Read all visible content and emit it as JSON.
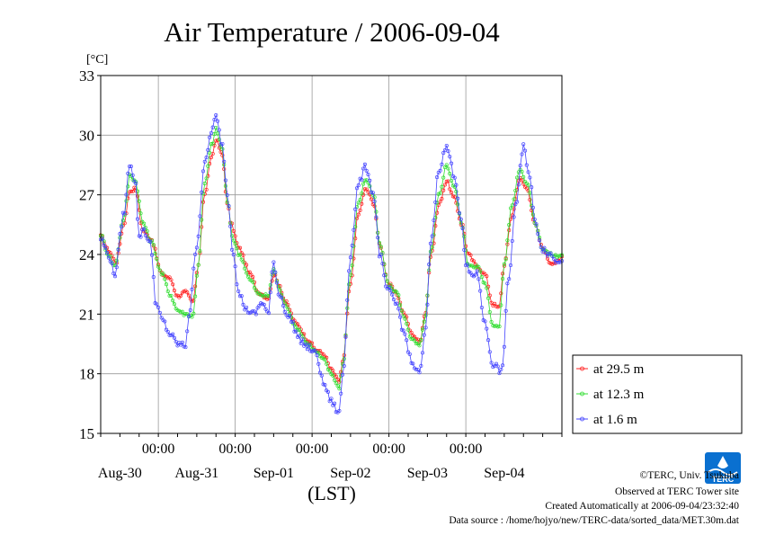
{
  "chart_data": {
    "type": "line",
    "title": "Air Temperature / 2006-09-04",
    "ylabel": "[°C]",
    "xlabel": "(LST)",
    "ylim": [
      15,
      33
    ],
    "yticks": [
      15,
      18,
      21,
      24,
      27,
      30,
      33
    ],
    "x_unit": "days since Aug-29 06:00",
    "xlim": [
      0,
      6
    ],
    "time_ticks": [
      {
        "x": 0.75,
        "label": "00:00"
      },
      {
        "x": 1.75,
        "label": "00:00"
      },
      {
        "x": 2.75,
        "label": "00:00"
      },
      {
        "x": 3.75,
        "label": "00:00"
      },
      {
        "x": 4.75,
        "label": "00:00"
      }
    ],
    "date_ticks": [
      {
        "x": 0.25,
        "label": "Aug-30"
      },
      {
        "x": 1.25,
        "label": "Aug-31"
      },
      {
        "x": 2.25,
        "label": "Sep-01"
      },
      {
        "x": 3.25,
        "label": "Sep-02"
      },
      {
        "x": 4.25,
        "label": "Sep-03"
      },
      {
        "x": 5.25,
        "label": "Sep-04"
      }
    ],
    "grid": true,
    "legend_position": "right-bottom",
    "series": [
      {
        "name": "at 29.5 m",
        "color": "#ff2020",
        "keypoints": [
          [
            0,
            24.9
          ],
          [
            0.1,
            24.2
          ],
          [
            0.2,
            23.6
          ],
          [
            0.3,
            25.5
          ],
          [
            0.38,
            27.2
          ],
          [
            0.45,
            27.3
          ],
          [
            0.55,
            25.2
          ],
          [
            0.65,
            24.8
          ],
          [
            0.8,
            23.0
          ],
          [
            0.9,
            22.8
          ],
          [
            1.0,
            21.9
          ],
          [
            1.1,
            22.1
          ],
          [
            1.2,
            21.6
          ],
          [
            1.27,
            23.5
          ],
          [
            1.35,
            27.0
          ],
          [
            1.45,
            29.0
          ],
          [
            1.5,
            29.8
          ],
          [
            1.58,
            29.0
          ],
          [
            1.65,
            26.5
          ],
          [
            1.7,
            25.5
          ],
          [
            1.8,
            24.3
          ],
          [
            1.95,
            23.0
          ],
          [
            2.05,
            22.1
          ],
          [
            2.18,
            21.8
          ],
          [
            2.25,
            23.0
          ],
          [
            2.32,
            22.5
          ],
          [
            2.4,
            21.6
          ],
          [
            2.55,
            20.5
          ],
          [
            2.7,
            19.7
          ],
          [
            2.8,
            19.2
          ],
          [
            2.9,
            19.0
          ],
          [
            3.0,
            18.2
          ],
          [
            3.1,
            17.6
          ],
          [
            3.15,
            18.6
          ],
          [
            3.25,
            22.5
          ],
          [
            3.35,
            26.0
          ],
          [
            3.45,
            27.3
          ],
          [
            3.55,
            26.6
          ],
          [
            3.63,
            24.5
          ],
          [
            3.75,
            22.5
          ],
          [
            3.85,
            22.0
          ],
          [
            3.95,
            21.0
          ],
          [
            4.05,
            20.0
          ],
          [
            4.15,
            19.6
          ],
          [
            4.22,
            21.0
          ],
          [
            4.3,
            24.0
          ],
          [
            4.4,
            26.5
          ],
          [
            4.5,
            27.7
          ],
          [
            4.6,
            26.8
          ],
          [
            4.7,
            25.5
          ],
          [
            4.78,
            24.0
          ],
          [
            4.9,
            23.4
          ],
          [
            5.0,
            23.0
          ],
          [
            5.1,
            21.5
          ],
          [
            5.18,
            21.3
          ],
          [
            5.25,
            23.5
          ],
          [
            5.35,
            26.0
          ],
          [
            5.45,
            27.8
          ],
          [
            5.55,
            27.3
          ],
          [
            5.65,
            25.5
          ],
          [
            5.75,
            24.3
          ],
          [
            5.85,
            23.6
          ],
          [
            5.95,
            23.6
          ],
          [
            6.0,
            23.9
          ]
        ]
      },
      {
        "name": "at 12.3 m",
        "color": "#30dd30",
        "keypoints": [
          [
            0,
            25.0
          ],
          [
            0.1,
            24.0
          ],
          [
            0.18,
            23.4
          ],
          [
            0.3,
            25.8
          ],
          [
            0.38,
            28.0
          ],
          [
            0.45,
            27.7
          ],
          [
            0.55,
            25.6
          ],
          [
            0.65,
            24.7
          ],
          [
            0.8,
            23.0
          ],
          [
            0.9,
            22.0
          ],
          [
            1.0,
            21.2
          ],
          [
            1.1,
            21.0
          ],
          [
            1.2,
            20.9
          ],
          [
            1.27,
            23.5
          ],
          [
            1.35,
            27.5
          ],
          [
            1.45,
            29.6
          ],
          [
            1.5,
            30.3
          ],
          [
            1.58,
            29.3
          ],
          [
            1.65,
            26.6
          ],
          [
            1.72,
            24.8
          ],
          [
            1.8,
            24.0
          ],
          [
            1.95,
            22.7
          ],
          [
            2.05,
            22.0
          ],
          [
            2.18,
            21.9
          ],
          [
            2.25,
            23.3
          ],
          [
            2.32,
            22.3
          ],
          [
            2.4,
            21.5
          ],
          [
            2.55,
            20.3
          ],
          [
            2.7,
            19.5
          ],
          [
            2.8,
            19.1
          ],
          [
            2.9,
            18.7
          ],
          [
            3.0,
            18.0
          ],
          [
            3.1,
            17.3
          ],
          [
            3.15,
            18.5
          ],
          [
            3.25,
            23.0
          ],
          [
            3.35,
            26.6
          ],
          [
            3.45,
            27.8
          ],
          [
            3.55,
            27.0
          ],
          [
            3.63,
            24.5
          ],
          [
            3.75,
            22.4
          ],
          [
            3.85,
            22.1
          ],
          [
            3.95,
            20.8
          ],
          [
            4.05,
            19.7
          ],
          [
            4.15,
            19.4
          ],
          [
            4.22,
            20.8
          ],
          [
            4.3,
            24.2
          ],
          [
            4.4,
            27.0
          ],
          [
            4.5,
            28.5
          ],
          [
            4.6,
            27.4
          ],
          [
            4.7,
            25.5
          ],
          [
            4.78,
            23.5
          ],
          [
            4.9,
            23.4
          ],
          [
            5.0,
            22.5
          ],
          [
            5.1,
            20.5
          ],
          [
            5.18,
            20.3
          ],
          [
            5.25,
            23.5
          ],
          [
            5.35,
            26.5
          ],
          [
            5.45,
            28.3
          ],
          [
            5.55,
            27.6
          ],
          [
            5.65,
            25.6
          ],
          [
            5.75,
            24.3
          ],
          [
            5.85,
            24.0
          ],
          [
            5.95,
            23.9
          ],
          [
            6.0,
            24.0
          ]
        ]
      },
      {
        "name": "at 1.6 m",
        "color": "#4444ff",
        "keypoints": [
          [
            0,
            24.8
          ],
          [
            0.1,
            24.0
          ],
          [
            0.18,
            23.0
          ],
          [
            0.3,
            26.0
          ],
          [
            0.38,
            28.6
          ],
          [
            0.45,
            27.7
          ],
          [
            0.5,
            24.8
          ],
          [
            0.55,
            25.3
          ],
          [
            0.65,
            24.5
          ],
          [
            0.72,
            21.5
          ],
          [
            0.8,
            20.7
          ],
          [
            0.9,
            20.0
          ],
          [
            1.0,
            19.5
          ],
          [
            1.1,
            19.4
          ],
          [
            1.15,
            21.0
          ],
          [
            1.25,
            24.5
          ],
          [
            1.35,
            28.5
          ],
          [
            1.45,
            30.3
          ],
          [
            1.5,
            30.9
          ],
          [
            1.58,
            29.5
          ],
          [
            1.65,
            27.0
          ],
          [
            1.72,
            24.2
          ],
          [
            1.8,
            22.0
          ],
          [
            1.9,
            21.2
          ],
          [
            2.0,
            21.0
          ],
          [
            2.1,
            21.6
          ],
          [
            2.18,
            21.0
          ],
          [
            2.25,
            23.6
          ],
          [
            2.32,
            22.0
          ],
          [
            2.45,
            20.8
          ],
          [
            2.6,
            19.7
          ],
          [
            2.7,
            19.3
          ],
          [
            2.8,
            19.0
          ],
          [
            2.9,
            17.5
          ],
          [
            3.0,
            16.6
          ],
          [
            3.1,
            16.0
          ],
          [
            3.15,
            18.0
          ],
          [
            3.25,
            24.0
          ],
          [
            3.35,
            27.5
          ],
          [
            3.45,
            28.4
          ],
          [
            3.55,
            27.0
          ],
          [
            3.63,
            24.0
          ],
          [
            3.72,
            22.3
          ],
          [
            3.85,
            21.5
          ],
          [
            3.95,
            20.0
          ],
          [
            4.05,
            18.5
          ],
          [
            4.15,
            18.0
          ],
          [
            4.22,
            20.0
          ],
          [
            4.3,
            24.8
          ],
          [
            4.4,
            28.3
          ],
          [
            4.5,
            29.4
          ],
          [
            4.6,
            28.0
          ],
          [
            4.7,
            25.5
          ],
          [
            4.75,
            23.4
          ],
          [
            4.82,
            23.0
          ],
          [
            4.9,
            23.0
          ],
          [
            5.0,
            20.5
          ],
          [
            5.1,
            18.5
          ],
          [
            5.22,
            18.1
          ],
          [
            5.3,
            22.5
          ],
          [
            5.4,
            26.5
          ],
          [
            5.5,
            29.4
          ],
          [
            5.58,
            28.0
          ],
          [
            5.65,
            25.6
          ],
          [
            5.75,
            24.3
          ],
          [
            5.85,
            24.0
          ],
          [
            5.95,
            23.6
          ],
          [
            6.0,
            23.8
          ]
        ]
      }
    ]
  },
  "footer": {
    "copyright": "©TERC, Univ. Tsukuba",
    "observed": "Observed at TERC Tower site",
    "created": "Created Automatically at 2006-09-04/23:32:40",
    "source": "Data source : /home/hojyo/new/TERC-data/sorted_data/MET.30m.dat"
  },
  "logo": {
    "text": "TERC",
    "color": "#0a70d0"
  }
}
